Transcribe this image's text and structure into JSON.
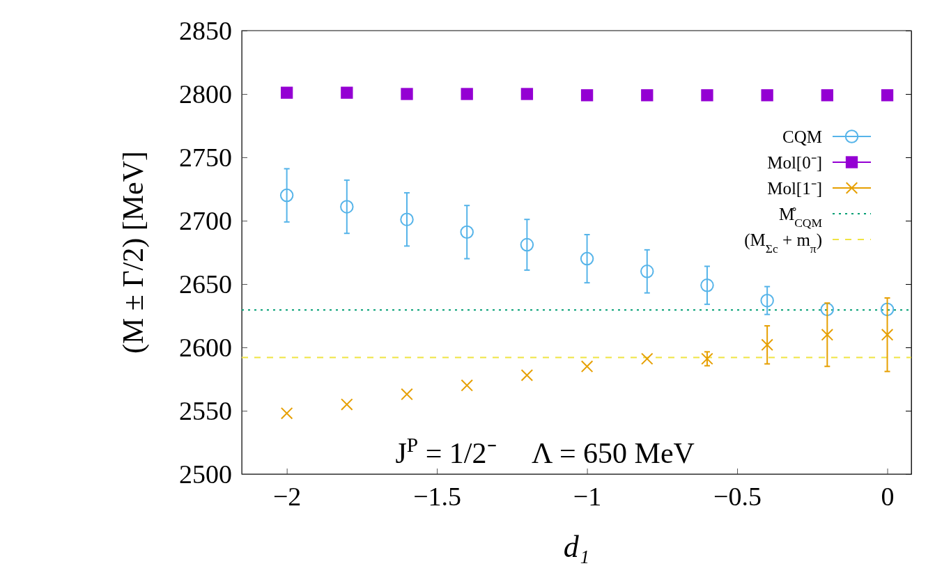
{
  "chart_data": {
    "type": "scatter",
    "xlabel": "d₁",
    "ylabel": "(M ± Γ/2) [MeV]",
    "x": [
      -2,
      -1.8,
      -1.6,
      -1.4,
      -1.2,
      -1,
      -0.8,
      -0.6,
      -0.4,
      -0.2,
      0
    ],
    "series": [
      {
        "name": "CQM",
        "color": "#56b4e9",
        "marker": "circle",
        "values": [
          2720,
          2711,
          2701,
          2691,
          2681,
          2670,
          2660,
          2649,
          2637,
          2630,
          2630
        ],
        "errors": [
          21,
          21,
          21,
          21,
          20,
          19,
          17,
          15,
          11,
          null,
          null
        ]
      },
      {
        "name": "Mol[0⁻]",
        "color": "#9400d3",
        "marker": "square",
        "values": [
          2801,
          2801,
          2800,
          2800,
          2800,
          2799,
          2799,
          2799,
          2799,
          2799,
          2799
        ]
      },
      {
        "name": "Mol[1⁻]",
        "color": "#e69f00",
        "marker": "cross",
        "values": [
          2548,
          2555,
          2563,
          2570,
          2578,
          2585,
          2591,
          2591,
          2602,
          2610,
          2610
        ],
        "errors": [
          null,
          null,
          null,
          null,
          null,
          null,
          null,
          5.5,
          15,
          25,
          29
        ]
      }
    ],
    "ref_lines": [
      {
        "axis": "y",
        "value": 2629.5,
        "label": "M̊$_{CQM}$",
        "color": "#009e73",
        "line_style": "dotted"
      },
      {
        "axis": "y",
        "value": 2592,
        "label": "(M$_{Σc}$ + m$_{π}$)",
        "color": "#f0e442",
        "line_style": "dashed"
      }
    ],
    "xlim": [
      -2.15,
      0.08
    ],
    "xticks": [
      {
        "value": -2,
        "label": "−2"
      },
      {
        "value": -1.5,
        "label": "−1.5"
      },
      {
        "value": -1,
        "label": "−1"
      },
      {
        "value": -0.5,
        "label": "−0.5"
      },
      0
    ],
    "ylim": [
      2500,
      2850
    ],
    "yticks": [
      2500,
      2550,
      2600,
      2650,
      2700,
      2750,
      2800,
      2850
    ],
    "grid": false,
    "legend": "top right",
    "annotations": [
      "J$^{P}$ = 1/2⁻",
      "Λ = 650 MeV"
    ]
  }
}
